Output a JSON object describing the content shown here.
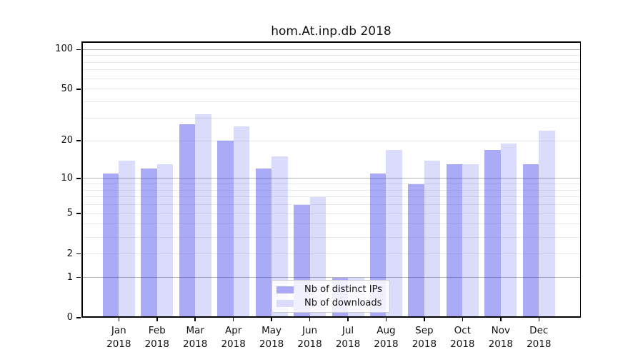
{
  "title": "hom.At.inp.db 2018",
  "chart_data": {
    "type": "bar",
    "title": "hom.At.inp.db 2018",
    "categories": [
      "Jan 2018",
      "Feb 2018",
      "Mar 2018",
      "Apr 2018",
      "May 2018",
      "Jun 2018",
      "Jul 2018",
      "Aug 2018",
      "Sep 2018",
      "Oct 2018",
      "Nov 2018",
      "Dec 2018"
    ],
    "month_labels": [
      "Jan",
      "Feb",
      "Mar",
      "Apr",
      "May",
      "Jun",
      "Jul",
      "Aug",
      "Sep",
      "Oct",
      "Nov",
      "Dec"
    ],
    "year_label": "2018",
    "series": [
      {
        "name": "Nb of distinct IPs",
        "values": [
          11,
          12,
          27,
          20,
          12,
          6,
          1,
          11,
          9,
          13,
          17,
          13
        ]
      },
      {
        "name": "Nb of downloads",
        "values": [
          14,
          13,
          32,
          26,
          15,
          7,
          1,
          17,
          14,
          13,
          19,
          24
        ]
      }
    ],
    "xlabel": "",
    "ylabel": "",
    "yscale": "symlog",
    "ylim": [
      0,
      115
    ],
    "y_tick_values": [
      0,
      1,
      2,
      5,
      10,
      20,
      50,
      100
    ],
    "y_tick_labels": [
      "0",
      "1",
      "2",
      "5",
      "10",
      "20",
      "50",
      "100"
    ],
    "y_major_gridlines": [
      1,
      10,
      100
    ],
    "y_minor_gridlines": [
      2,
      3,
      4,
      5,
      6,
      7,
      8,
      9,
      20,
      30,
      40,
      50,
      60,
      70,
      80,
      90
    ],
    "grid": true,
    "legend_position": "lower-center"
  },
  "colors": {
    "bar_ips": "rgba(42,42,234,0.40)",
    "bar_downloads": "rgba(42,42,234,0.17)",
    "legend_swatch_ips": "#a9a9f7",
    "legend_swatch_downloads": "#dbdbfc",
    "grid_major": "#b2b2b2",
    "grid_minor": "#e9e9e9",
    "axis": "#000000"
  }
}
